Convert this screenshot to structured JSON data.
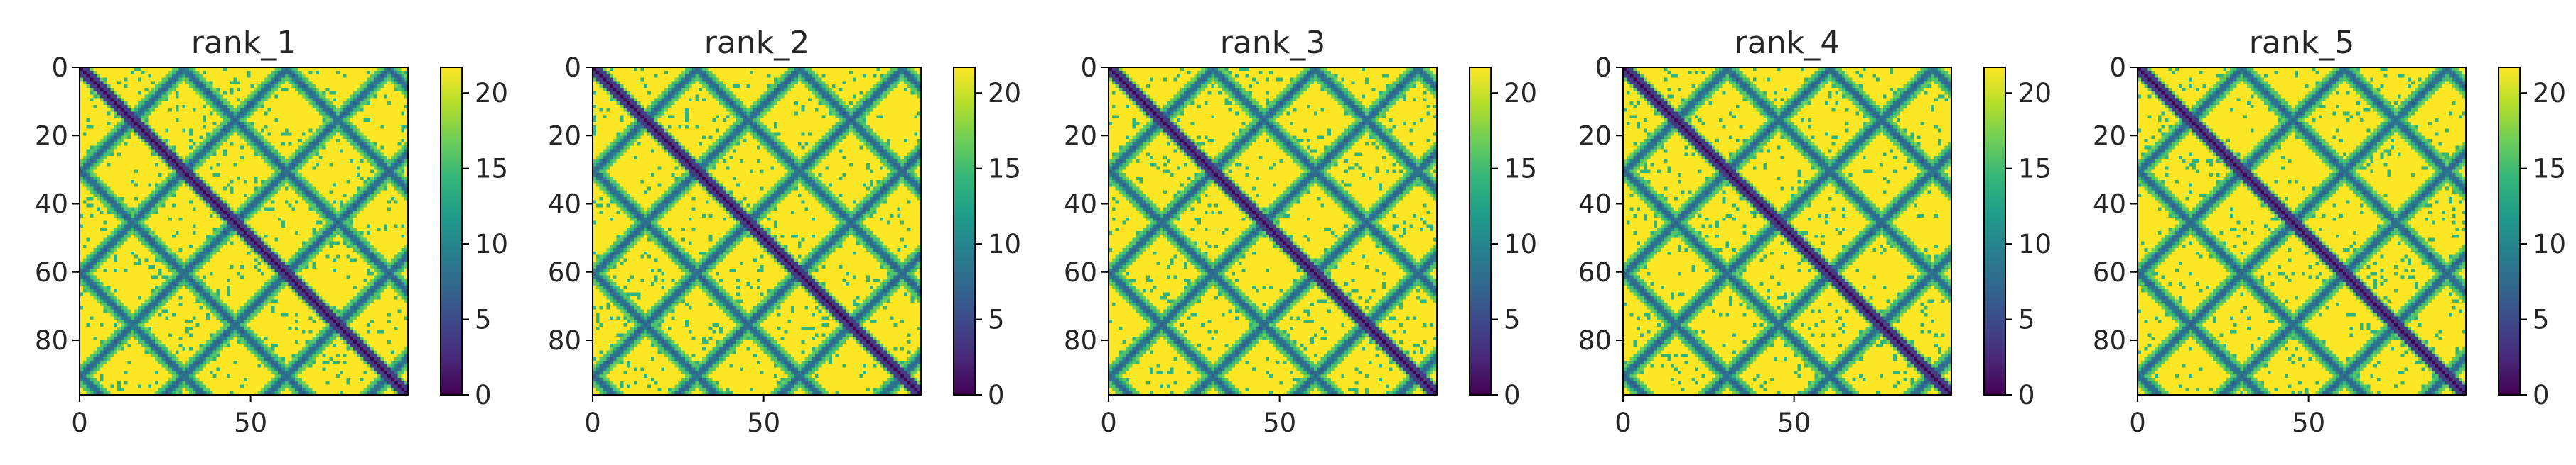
{
  "figure": {
    "colormap": "viridis",
    "colorbar_stops": [
      "#440154",
      "#482878",
      "#3e4989",
      "#31688e",
      "#26828e",
      "#1f9e89",
      "#35b779",
      "#6ece58",
      "#b5de2b",
      "#fde725"
    ]
  },
  "chart_data": [
    {
      "type": "heatmap",
      "title": "rank_1",
      "matrix_size": 96,
      "x_ticks": [
        0,
        50
      ],
      "y_ticks": [
        0,
        20,
        40,
        60,
        80
      ],
      "colorbar_ticks": [
        0,
        5,
        10,
        15,
        20
      ],
      "value_range": [
        0,
        21.7
      ],
      "description_values": {
        "diagonal": 0,
        "near_diagonal_band": 4,
        "contacts": 8,
        "far": 21.7
      }
    },
    {
      "type": "heatmap",
      "title": "rank_2",
      "matrix_size": 96,
      "x_ticks": [
        0,
        50
      ],
      "y_ticks": [
        0,
        20,
        40,
        60,
        80
      ],
      "colorbar_ticks": [
        0,
        5,
        10,
        15,
        20
      ],
      "value_range": [
        0,
        21.7
      ],
      "description_values": {
        "diagonal": 0,
        "near_diagonal_band": 4,
        "contacts": 8,
        "far": 21.7
      }
    },
    {
      "type": "heatmap",
      "title": "rank_3",
      "matrix_size": 96,
      "x_ticks": [
        0,
        50
      ],
      "y_ticks": [
        0,
        20,
        40,
        60,
        80
      ],
      "colorbar_ticks": [
        0,
        5,
        10,
        15,
        20
      ],
      "value_range": [
        0,
        21.7
      ],
      "description_values": {
        "diagonal": 0,
        "near_diagonal_band": 4,
        "contacts": 8,
        "far": 21.7
      }
    },
    {
      "type": "heatmap",
      "title": "rank_4",
      "matrix_size": 96,
      "x_ticks": [
        0,
        50
      ],
      "y_ticks": [
        0,
        20,
        40,
        60,
        80
      ],
      "colorbar_ticks": [
        0,
        5,
        10,
        15,
        20
      ],
      "value_range": [
        0,
        21.7
      ],
      "description_values": {
        "diagonal": 0,
        "near_diagonal_band": 4,
        "contacts": 8,
        "far": 21.7
      }
    },
    {
      "type": "heatmap",
      "title": "rank_5",
      "matrix_size": 96,
      "x_ticks": [
        0,
        50
      ],
      "y_ticks": [
        0,
        20,
        40,
        60,
        80
      ],
      "colorbar_ticks": [
        0,
        5,
        10,
        15,
        20
      ],
      "value_range": [
        0,
        21.7
      ],
      "description_values": {
        "diagonal": 0,
        "near_diagonal_band": 4,
        "contacts": 8,
        "far": 21.7
      }
    }
  ]
}
